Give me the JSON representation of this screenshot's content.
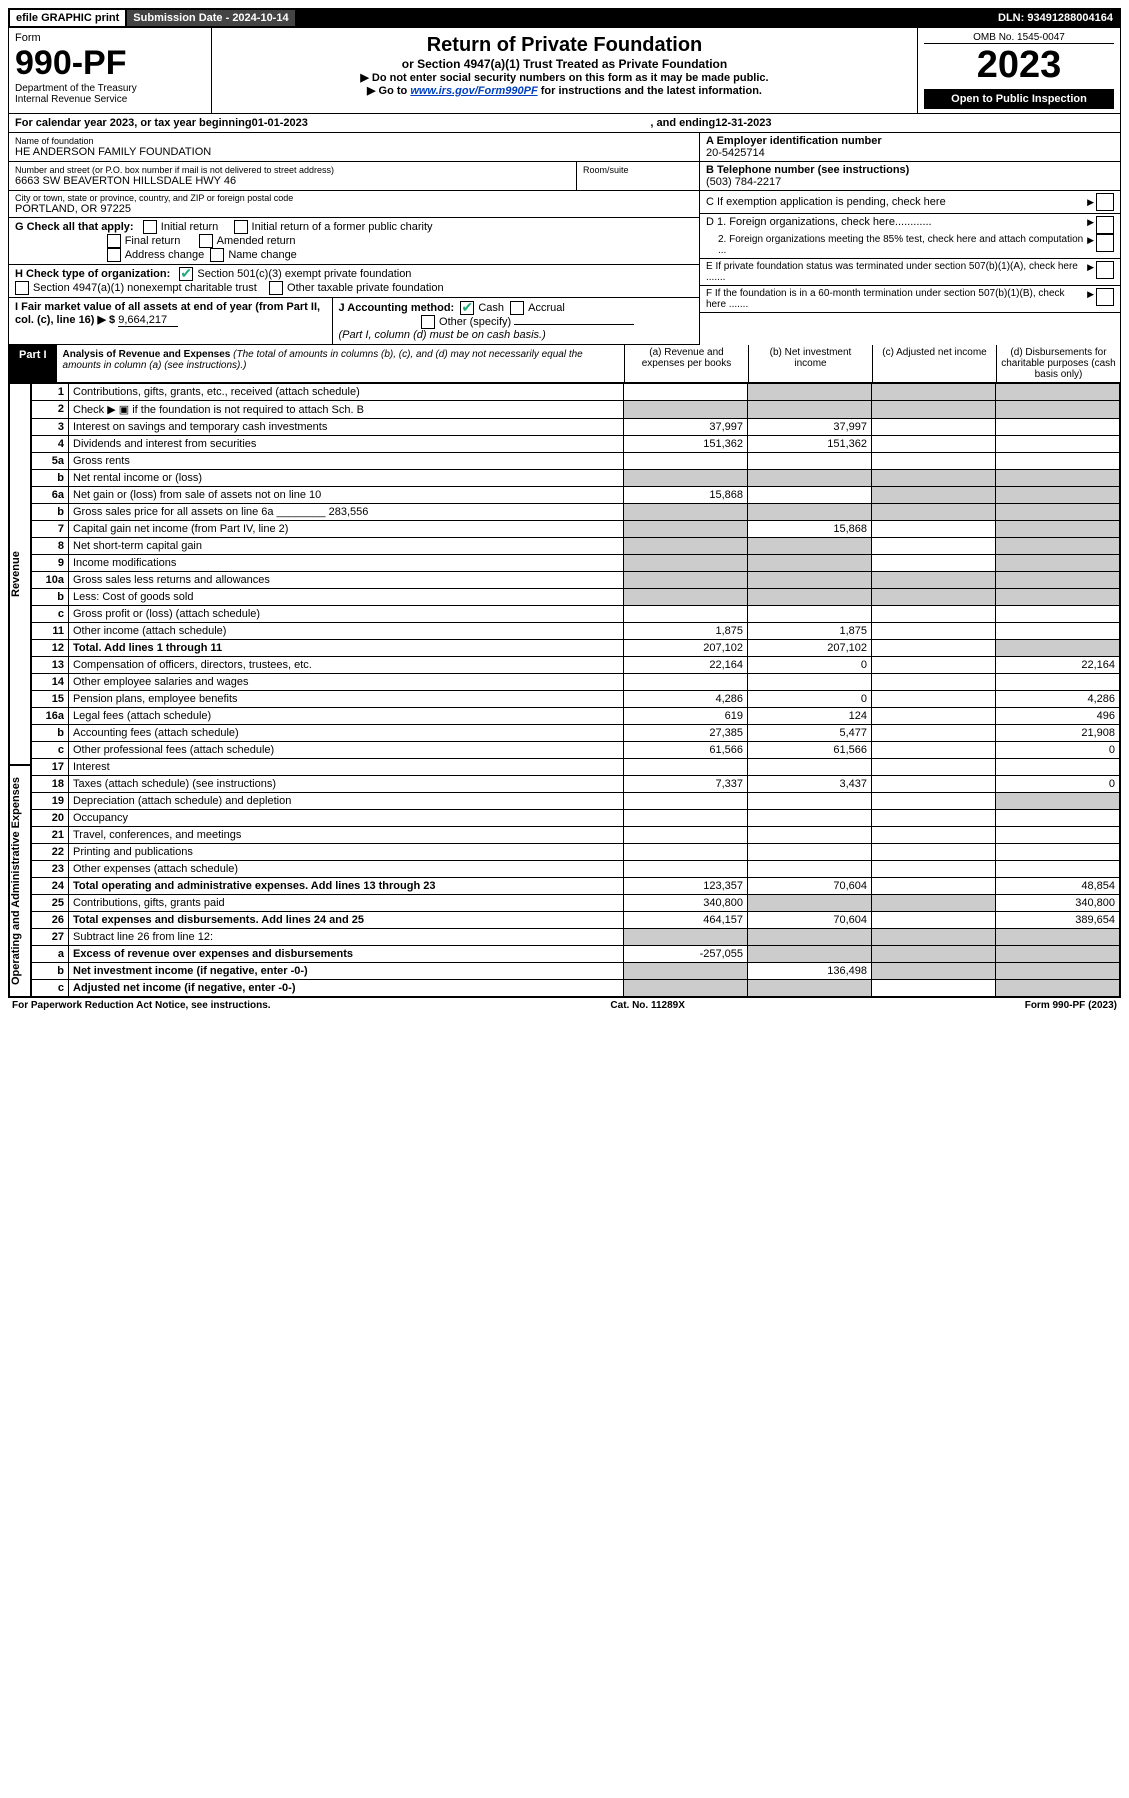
{
  "topbar": {
    "efile": "efile GRAPHIC print",
    "submission_label": "Submission Date - 2024-10-14",
    "dln": "DLN: 93491288004164"
  },
  "header": {
    "form_label": "Form",
    "form_number": "990-PF",
    "dept": "Department of the Treasury",
    "irs": "Internal Revenue Service",
    "title": "Return of Private Foundation",
    "subtitle": "or Section 4947(a)(1) Trust Treated as Private Foundation",
    "instr1": "▶ Do not enter social security numbers on this form as it may be made public.",
    "instr2_pre": "▶ Go to ",
    "instr2_link": "www.irs.gov/Form990PF",
    "instr2_post": " for instructions and the latest information.",
    "omb": "OMB No. 1545-0047",
    "year": "2023",
    "open": "Open to Public Inspection"
  },
  "calrow": {
    "pre": "For calendar year 2023, or tax year beginning ",
    "begin": "01-01-2023",
    "mid": " , and ending ",
    "end": "12-31-2023"
  },
  "name_block": {
    "label": "Name of foundation",
    "value": "HE ANDERSON FAMILY FOUNDATION"
  },
  "addr_block": {
    "label": "Number and street (or P.O. box number if mail is not delivered to street address)",
    "value": "6663 SW BEAVERTON HILLSDALE HWY 46",
    "room_label": "Room/suite"
  },
  "city_block": {
    "label": "City or town, state or province, country, and ZIP or foreign postal code",
    "value": "PORTLAND, OR  97225"
  },
  "A": {
    "label": "A Employer identification number",
    "value": "20-5425714"
  },
  "B": {
    "label": "B Telephone number (see instructions)",
    "value": "(503) 784-2217"
  },
  "C": {
    "label": "C If exemption application is pending, check here"
  },
  "D": {
    "d1": "D 1. Foreign organizations, check here............",
    "d2": "2. Foreign organizations meeting the 85% test, check here and attach computation ..."
  },
  "E": {
    "label": "E  If private foundation status was terminated under section 507(b)(1)(A), check here ......."
  },
  "F": {
    "label": "F  If the foundation is in a 60-month termination under section 507(b)(1)(B), check here ......."
  },
  "G": {
    "label": "G Check all that apply:",
    "opts": [
      "Initial return",
      "Final return",
      "Address change",
      "Initial return of a former public charity",
      "Amended return",
      "Name change"
    ]
  },
  "H": {
    "label": "H Check type of organization:",
    "opt1": "Section 501(c)(3) exempt private foundation",
    "opt2": "Section 4947(a)(1) nonexempt charitable trust",
    "opt3": "Other taxable private foundation"
  },
  "I": {
    "label": "I Fair market value of all assets at end of year (from Part II, col. (c), line 16) ▶ $",
    "value": "9,664,217"
  },
  "J": {
    "label": "J Accounting method:",
    "cash": "Cash",
    "accrual": "Accrual",
    "other": "Other (specify)",
    "note": "(Part I, column (d) must be on cash basis.)"
  },
  "part1": {
    "tab": "Part I",
    "title": "Analysis of Revenue and Expenses",
    "note": "(The total of amounts in columns (b), (c), and (d) may not necessarily equal the amounts in column (a) (see instructions).)",
    "colA": "(a)  Revenue and expenses per books",
    "colB": "(b)  Net investment income",
    "colC": "(c)  Adjusted net income",
    "colD": "(d)  Disbursements for charitable purposes (cash basis only)"
  },
  "sides": {
    "rev": "Revenue",
    "exp": "Operating and Administrative Expenses"
  },
  "lines": {
    "1": {
      "d": "Contributions, gifts, grants, etc., received (attach schedule)"
    },
    "2": {
      "d": "Check ▶ ▣ if the foundation is not required to attach Sch. B"
    },
    "3": {
      "d": "Interest on savings and temporary cash investments",
      "a": "37,997",
      "b": "37,997"
    },
    "4": {
      "d": "Dividends and interest from securities",
      "a": "151,362",
      "b": "151,362"
    },
    "5a": {
      "d": "Gross rents"
    },
    "5b": {
      "d": "Net rental income or (loss)"
    },
    "6a": {
      "d": "Net gain or (loss) from sale of assets not on line 10",
      "a": "15,868"
    },
    "6b": {
      "d": "Gross sales price for all assets on line 6a",
      "inline": "283,556"
    },
    "7": {
      "d": "Capital gain net income (from Part IV, line 2)",
      "b": "15,868"
    },
    "8": {
      "d": "Net short-term capital gain"
    },
    "9": {
      "d": "Income modifications"
    },
    "10a": {
      "d": "Gross sales less returns and allowances"
    },
    "10b": {
      "d": "Less: Cost of goods sold"
    },
    "10c": {
      "d": "Gross profit or (loss) (attach schedule)"
    },
    "11": {
      "d": "Other income (attach schedule)",
      "a": "1,875",
      "b": "1,875"
    },
    "12": {
      "d": "Total. Add lines 1 through 11",
      "a": "207,102",
      "b": "207,102",
      "bold": true
    },
    "13": {
      "d": "Compensation of officers, directors, trustees, etc.",
      "a": "22,164",
      "b": "0",
      "dd": "22,164"
    },
    "14": {
      "d": "Other employee salaries and wages"
    },
    "15": {
      "d": "Pension plans, employee benefits",
      "a": "4,286",
      "b": "0",
      "dd": "4,286"
    },
    "16a": {
      "d": "Legal fees (attach schedule)",
      "a": "619",
      "b": "124",
      "dd": "496"
    },
    "16b": {
      "d": "Accounting fees (attach schedule)",
      "a": "27,385",
      "b": "5,477",
      "dd": "21,908"
    },
    "16c": {
      "d": "Other professional fees (attach schedule)",
      "a": "61,566",
      "b": "61,566",
      "dd": "0"
    },
    "17": {
      "d": "Interest"
    },
    "18": {
      "d": "Taxes (attach schedule) (see instructions)",
      "a": "7,337",
      "b": "3,437",
      "dd": "0"
    },
    "19": {
      "d": "Depreciation (attach schedule) and depletion"
    },
    "20": {
      "d": "Occupancy"
    },
    "21": {
      "d": "Travel, conferences, and meetings"
    },
    "22": {
      "d": "Printing and publications"
    },
    "23": {
      "d": "Other expenses (attach schedule)"
    },
    "24": {
      "d": "Total operating and administrative expenses. Add lines 13 through 23",
      "a": "123,357",
      "b": "70,604",
      "dd": "48,854",
      "bold": true
    },
    "25": {
      "d": "Contributions, gifts, grants paid",
      "a": "340,800",
      "dd": "340,800"
    },
    "26": {
      "d": "Total expenses and disbursements. Add lines 24 and 25",
      "a": "464,157",
      "b": "70,604",
      "dd": "389,654",
      "bold": true
    },
    "27": {
      "d": "Subtract line 26 from line 12:"
    },
    "27a": {
      "d": "Excess of revenue over expenses and disbursements",
      "a": "-257,055",
      "bold": true
    },
    "27b": {
      "d": "Net investment income (if negative, enter -0-)",
      "b": "136,498",
      "bold": true
    },
    "27c": {
      "d": "Adjusted net income (if negative, enter -0-)",
      "bold": true
    }
  },
  "footer": {
    "left": "For Paperwork Reduction Act Notice, see instructions.",
    "mid": "Cat. No. 11289X",
    "right": "Form 990-PF (2023)"
  },
  "colors": {
    "grey": "#cccccc",
    "link": "#0040c0",
    "check": "#22aa66"
  }
}
